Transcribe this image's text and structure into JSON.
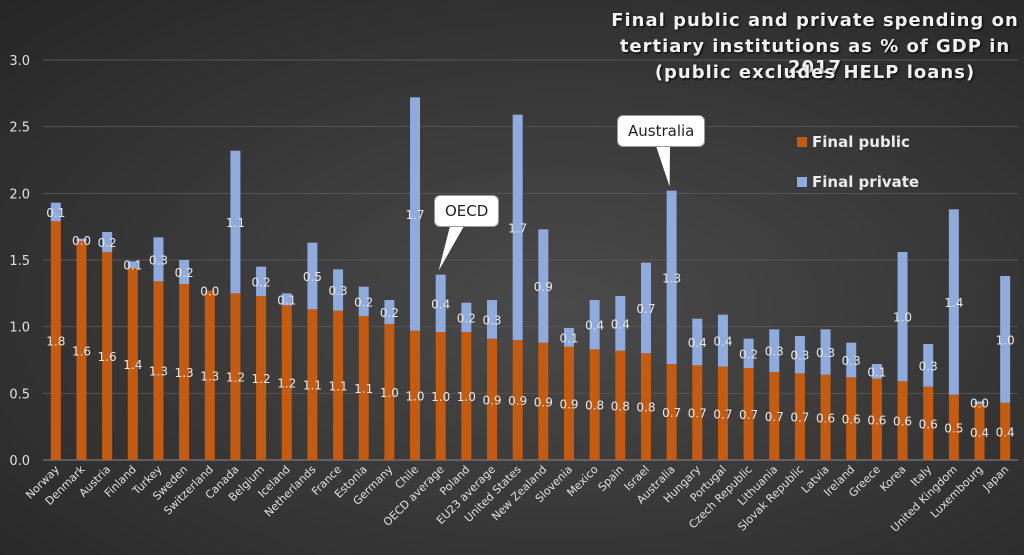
{
  "chart_data": {
    "type": "bar",
    "stacked": true,
    "title": [
      "Final public and private spending on",
      "tertiary institutions as % of GDP in 2017",
      "(public excludes HELP loans)"
    ],
    "xlabel": "",
    "ylabel": "",
    "ylim": [
      0,
      3.0
    ],
    "yticks": [
      "0.0",
      "0.5",
      "1.0",
      "1.5",
      "2.0",
      "2.5",
      "3.0"
    ],
    "grid": true,
    "legend_position": "top-right",
    "categories": [
      "Norway",
      "Denmark",
      "Austria",
      "Finland",
      "Turkey",
      "Sweden",
      "Switzerland",
      "Canada",
      "Belgium",
      "Iceland",
      "Netherlands",
      "France",
      "Estonia",
      "Germany",
      "Chile",
      "OECD average",
      "Poland",
      "EU23 average",
      "United States",
      "New Zealand",
      "Slovenia",
      "Mexico",
      "Spain",
      "Israel",
      "Australia",
      "Hungary",
      "Portugal",
      "Czech Republic",
      "Lithuania",
      "Slovak Republic",
      "Latvia",
      "Ireland",
      "Greece",
      "Korea",
      "Italy",
      "United Kingdom",
      "Luxembourg",
      "Japan"
    ],
    "series": [
      {
        "name": "Final public",
        "color": "#c55a11",
        "values": [
          1.79,
          1.64,
          1.56,
          1.44,
          1.34,
          1.32,
          1.27,
          1.25,
          1.23,
          1.16,
          1.13,
          1.12,
          1.08,
          1.02,
          0.97,
          0.96,
          0.96,
          0.91,
          0.9,
          0.88,
          0.85,
          0.83,
          0.82,
          0.8,
          0.72,
          0.71,
          0.7,
          0.69,
          0.66,
          0.65,
          0.64,
          0.62,
          0.61,
          0.59,
          0.55,
          0.49,
          0.42,
          0.43
        ],
        "labels": [
          "1.8",
          "1.6",
          "1.6",
          "1.4",
          "1.3",
          "1.3",
          "1.3",
          "1.2",
          "1.2",
          "1.2",
          "1.1",
          "1.1",
          "1.1",
          "1.0",
          "1.0",
          "1.0",
          "1.0",
          "0.9",
          "0.9",
          "0.9",
          "0.9",
          "0.8",
          "0.8",
          "0.8",
          "0.7",
          "0.7",
          "0.7",
          "0.7",
          "0.7",
          "0.7",
          "0.6",
          "0.6",
          "0.6",
          "0.6",
          "0.6",
          "0.5",
          "0.4",
          "0.4"
        ]
      },
      {
        "name": "Final private",
        "color": "#8faadc",
        "values": [
          0.14,
          0.02,
          0.15,
          0.05,
          0.33,
          0.18,
          0.0,
          1.07,
          0.22,
          0.09,
          0.5,
          0.31,
          0.22,
          0.18,
          1.75,
          0.43,
          0.22,
          0.29,
          1.69,
          0.85,
          0.14,
          0.37,
          0.41,
          0.68,
          1.3,
          0.35,
          0.39,
          0.22,
          0.32,
          0.28,
          0.34,
          0.26,
          0.11,
          0.97,
          0.32,
          1.39,
          0.02,
          0.95
        ],
        "labels": [
          "0.1",
          "0.0",
          "0.2",
          "0.1",
          "0.3",
          "0.2",
          "0.0",
          "1.1",
          "0.2",
          "0.1",
          "0.5",
          "0.3",
          "0.2",
          "0.2",
          "1.7",
          "0.4",
          "0.2",
          "0.3",
          "1.7",
          "0.9",
          "0.1",
          "0.4",
          "0.4",
          "0.7",
          "1.3",
          "0.4",
          "0.4",
          "0.2",
          "0.3",
          "0.3",
          "0.3",
          "0.3",
          "0.1",
          "1.0",
          "0.3",
          "1.4",
          "0.0",
          "1.0"
        ]
      }
    ],
    "annotations": [
      {
        "text": "OECD",
        "target": "OECD average"
      },
      {
        "text": "Australia",
        "target": "Australia"
      }
    ]
  }
}
